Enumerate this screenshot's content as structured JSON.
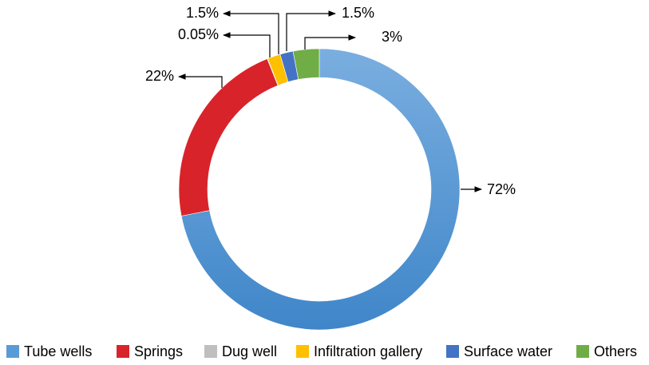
{
  "chart_data": {
    "type": "donut",
    "categories": [
      "Tube wells",
      "Springs",
      "Dug well",
      "Infiltration gallery",
      "Surface water",
      "Others"
    ],
    "values": [
      72,
      22,
      0.05,
      1.5,
      1.5,
      3
    ],
    "value_labels": [
      "72%",
      "22%",
      "0.05%",
      "1.5%",
      "1.5%",
      "3%"
    ],
    "colors": [
      "#5b9bd5",
      "#d9232a",
      "#bfbfbf",
      "#ffc000",
      "#4472c4",
      "#70ad47"
    ],
    "legend": "bottom"
  }
}
